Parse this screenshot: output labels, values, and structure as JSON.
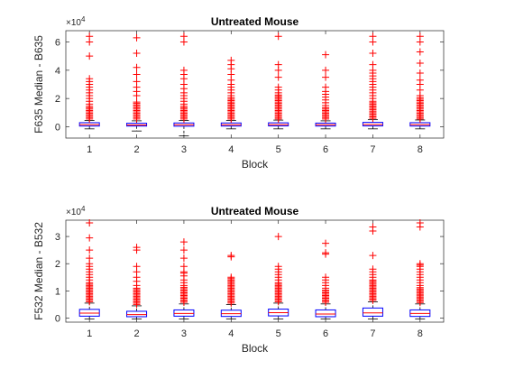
{
  "chart_data": [
    {
      "type": "boxplot",
      "title": "Untreated Mouse",
      "xlabel": "Block",
      "ylabel": "F635 Median - B635",
      "y_exponent_label": "×10",
      "y_exponent_power": "4",
      "categories": [
        "1",
        "2",
        "3",
        "4",
        "5",
        "6",
        "7",
        "8"
      ],
      "ylim": [
        -8000,
        68000
      ],
      "yticks": [
        0,
        20000,
        40000,
        60000
      ],
      "ytick_labels": [
        "0",
        "2",
        "4",
        "6"
      ],
      "box_color": "#0000ff",
      "median_color": "#ff0000",
      "outlier_color": "#ff0000",
      "boxes": [
        {
          "q1": 500,
          "median": 1500,
          "q3": 2900,
          "whisker_low": -1500,
          "whisker_high": 4500,
          "outliers": [
            5500,
            6500,
            7500,
            8500,
            9500,
            10500,
            11500,
            12500,
            13500,
            14500,
            16000,
            18000,
            20000,
            22000,
            24000,
            26000,
            28000,
            30000,
            32000,
            34000,
            50000,
            60000,
            64000
          ]
        },
        {
          "q1": 500,
          "median": 1300,
          "q3": 2500,
          "whisker_low": -3000,
          "whisker_high": 4200,
          "outliers": [
            5500,
            6500,
            7500,
            8500,
            9500,
            10500,
            11500,
            12500,
            13500,
            14500,
            15500,
            16500,
            17500,
            22000,
            25000,
            28000,
            32000,
            37000,
            42000,
            52000,
            63000
          ]
        },
        {
          "q1": 400,
          "median": 1400,
          "q3": 2700,
          "whisker_low": -6500,
          "whisker_high": 4500,
          "outliers": [
            5500,
            6500,
            7500,
            8500,
            9500,
            10500,
            11500,
            12500,
            13500,
            14500,
            16000,
            18000,
            20000,
            22000,
            24000,
            27000,
            30000,
            34000,
            37000,
            40000,
            60000,
            64000
          ]
        },
        {
          "q1": 500,
          "median": 1400,
          "q3": 2700,
          "whisker_low": -1500,
          "whisker_high": 4500,
          "outliers": [
            5500,
            6500,
            7500,
            8500,
            9500,
            10500,
            11500,
            12500,
            13500,
            14500,
            15500,
            16500,
            17500,
            18500,
            19500,
            20500,
            22000,
            24000,
            26000,
            28000,
            30000,
            33000,
            37000,
            41000,
            44000,
            47000
          ]
        },
        {
          "q1": 600,
          "median": 1500,
          "q3": 2800,
          "whisker_low": -1500,
          "whisker_high": 4700,
          "outliers": [
            5500,
            6500,
            7500,
            8500,
            9500,
            10500,
            11500,
            12500,
            13500,
            14500,
            15500,
            16500,
            17500,
            18500,
            19500,
            20500,
            21500,
            22500,
            24000,
            26000,
            28000,
            35000,
            40000,
            44000,
            64000
          ]
        },
        {
          "q1": 500,
          "median": 1400,
          "q3": 2600,
          "whisker_low": -1500,
          "whisker_high": 4200,
          "outliers": [
            5500,
            6500,
            7500,
            8500,
            9500,
            10500,
            11500,
            12500,
            13500,
            15000,
            17000,
            19000,
            21000,
            23000,
            25000,
            28000,
            35000,
            40000,
            51000
          ]
        },
        {
          "q1": 600,
          "median": 1600,
          "q3": 3100,
          "whisker_low": -1500,
          "whisker_high": 5000,
          "outliers": [
            6000,
            7000,
            8000,
            9000,
            10000,
            11000,
            12000,
            13000,
            14000,
            15000,
            16000,
            17000,
            18000,
            20000,
            22000,
            24000,
            26000,
            28000,
            30000,
            32000,
            34000,
            36000,
            38000,
            40000,
            44000,
            52000,
            60000,
            64000
          ]
        },
        {
          "q1": 500,
          "median": 1500,
          "q3": 2900,
          "whisker_low": -1500,
          "whisker_high": 4800,
          "outliers": [
            5500,
            6500,
            7500,
            8500,
            9500,
            10500,
            11500,
            12500,
            13500,
            14500,
            15500,
            16500,
            17500,
            18500,
            19500,
            20500,
            22000,
            26000,
            30000,
            33000,
            38000,
            45000,
            53000,
            60000,
            64000
          ]
        }
      ]
    },
    {
      "type": "boxplot",
      "title": "Untreated Mouse",
      "xlabel": "Block",
      "ylabel": "F532 Median - B532",
      "y_exponent_label": "×10",
      "y_exponent_power": "4",
      "categories": [
        "1",
        "2",
        "3",
        "4",
        "5",
        "6",
        "7",
        "8"
      ],
      "ylim": [
        -1500,
        36000
      ],
      "yticks": [
        0,
        10000,
        20000,
        30000
      ],
      "ytick_labels": [
        "0",
        "1",
        "2",
        "3"
      ],
      "box_color": "#0000ff",
      "median_color": "#ff0000",
      "outlier_color": "#ff0000",
      "boxes": [
        {
          "q1": 700,
          "median": 1800,
          "q3": 3200,
          "whisker_low": -300,
          "whisker_high": 5500,
          "outliers": [
            6000,
            6500,
            7000,
            7500,
            8000,
            8500,
            9000,
            9500,
            10000,
            10500,
            11000,
            11500,
            12000,
            12500,
            13000,
            14000,
            15000,
            16000,
            17000,
            18000,
            19000,
            20000,
            22000,
            25000,
            29500,
            35000
          ]
        },
        {
          "q1": 500,
          "median": 1300,
          "q3": 2500,
          "whisker_low": -300,
          "whisker_high": 4500,
          "outliers": [
            5000,
            5500,
            6000,
            6500,
            7000,
            7500,
            8000,
            8500,
            9000,
            9500,
            10000,
            10500,
            11000,
            12000,
            13500,
            15000,
            17000,
            19000,
            25000,
            26000
          ]
        },
        {
          "q1": 700,
          "median": 1700,
          "q3": 3000,
          "whisker_low": -300,
          "whisker_high": 5200,
          "outliers": [
            5800,
            6300,
            6800,
            7300,
            7800,
            8300,
            8800,
            9300,
            9800,
            10300,
            10800,
            11300,
            12000,
            13000,
            14000,
            15500,
            16500,
            17000,
            19000,
            22000,
            25000,
            28000
          ]
        },
        {
          "q1": 600,
          "median": 1600,
          "q3": 2900,
          "whisker_low": -300,
          "whisker_high": 5000,
          "outliers": [
            5500,
            6000,
            6500,
            7000,
            7500,
            8000,
            8500,
            9000,
            9500,
            10000,
            10500,
            11000,
            11500,
            12000,
            12500,
            13000,
            13500,
            14000,
            14500,
            15000,
            22500,
            23000
          ]
        },
        {
          "q1": 800,
          "median": 2000,
          "q3": 3300,
          "whisker_low": -300,
          "whisker_high": 5500,
          "outliers": [
            6000,
            6500,
            7000,
            7500,
            8000,
            8500,
            9000,
            9500,
            10000,
            10500,
            11000,
            11500,
            12000,
            12500,
            13000,
            14000,
            15000,
            16000,
            17000,
            18000,
            19000,
            30000
          ]
        },
        {
          "q1": 500,
          "median": 1500,
          "q3": 3000,
          "whisker_low": -300,
          "whisker_high": 5200,
          "outliers": [
            5800,
            6300,
            6800,
            7300,
            7800,
            8300,
            8800,
            9300,
            9800,
            10300,
            11000,
            12000,
            13000,
            14000,
            15000,
            23500,
            24000,
            27500
          ]
        },
        {
          "q1": 700,
          "median": 1900,
          "q3": 3700,
          "whisker_low": -300,
          "whisker_high": 6000,
          "outliers": [
            6500,
            7000,
            7500,
            8000,
            8500,
            9000,
            9500,
            10000,
            10500,
            11000,
            11500,
            12000,
            12500,
            13000,
            13500,
            14000,
            15000,
            16000,
            17000,
            18000,
            23000,
            32000,
            33500
          ]
        },
        {
          "q1": 600,
          "median": 1700,
          "q3": 3000,
          "whisker_low": -300,
          "whisker_high": 5200,
          "outliers": [
            5700,
            6200,
            6700,
            7200,
            7700,
            8200,
            8700,
            9200,
            9700,
            10200,
            10700,
            11200,
            12000,
            13000,
            14000,
            15000,
            16000,
            17000,
            18000,
            19000,
            19500,
            20000,
            33500,
            35000
          ]
        }
      ]
    }
  ]
}
